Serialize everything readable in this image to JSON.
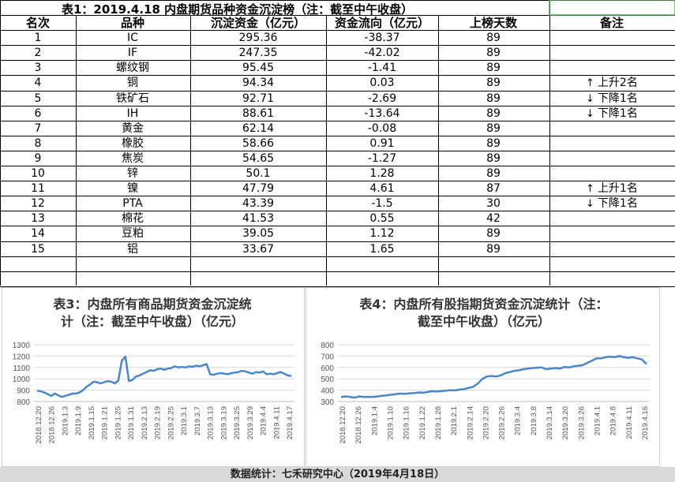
{
  "table": {
    "title": "表1：2019.4.18 内盘期货品种资金沉淀榜（注：截至中午收盘）",
    "headers": [
      "名次",
      "品种",
      "沉淀资金（亿元）",
      "资金流向（亿元）",
      "上榜天数",
      "备注"
    ],
    "rows": [
      {
        "rank": "1",
        "name": "IC",
        "capital": "295.36",
        "flow": "-38.37",
        "days": "89",
        "note": ""
      },
      {
        "rank": "2",
        "name": "IF",
        "capital": "247.35",
        "flow": "-42.02",
        "days": "89",
        "note": ""
      },
      {
        "rank": "3",
        "name": "螺纹钢",
        "capital": "95.45",
        "flow": "-1.41",
        "days": "89",
        "note": ""
      },
      {
        "rank": "4",
        "name": "铜",
        "capital": "94.34",
        "flow": "0.03",
        "days": "89",
        "note": "上升2名",
        "dir": "up"
      },
      {
        "rank": "5",
        "name": "铁矿石",
        "capital": "92.71",
        "flow": "-2.69",
        "days": "89",
        "note": "下降1名",
        "dir": "down"
      },
      {
        "rank": "6",
        "name": "IH",
        "capital": "88.61",
        "flow": "-13.64",
        "days": "89",
        "note": "下降1名",
        "dir": "down"
      },
      {
        "rank": "7",
        "name": "黄金",
        "capital": "62.14",
        "flow": "-0.08",
        "days": "89",
        "note": ""
      },
      {
        "rank": "8",
        "name": "橡胶",
        "capital": "58.66",
        "flow": "0.91",
        "days": "89",
        "note": ""
      },
      {
        "rank": "9",
        "name": "焦炭",
        "capital": "54.65",
        "flow": "-1.27",
        "days": "89",
        "note": ""
      },
      {
        "rank": "10",
        "name": "锌",
        "capital": "50.1",
        "flow": "1.28",
        "days": "89",
        "note": ""
      },
      {
        "rank": "11",
        "name": "镍",
        "capital": "47.79",
        "flow": "4.61",
        "days": "87",
        "note": "上升1名",
        "dir": "up"
      },
      {
        "rank": "12",
        "name": "PTA",
        "capital": "43.39",
        "flow": "-1.5",
        "days": "30",
        "note": "下降1名",
        "dir": "down"
      },
      {
        "rank": "13",
        "name": "棉花",
        "capital": "41.53",
        "flow": "0.55",
        "days": "42",
        "note": ""
      },
      {
        "rank": "14",
        "name": "豆粕",
        "capital": "39.05",
        "flow": "1.12",
        "days": "89",
        "note": ""
      },
      {
        "rank": "15",
        "name": "铝",
        "capital": "33.67",
        "flow": "1.65",
        "days": "89",
        "note": ""
      }
    ]
  },
  "footer": "数据统计：七禾研究中心（2019年4月18日）",
  "colors": {
    "line": "#4a86c8",
    "grid": "#d9d9d9",
    "green_cell_border": "#5aa05a"
  },
  "chart_data": [
    {
      "type": "line",
      "title_line1": "表3：内盘所有商品期货资金沉淀统",
      "title_line2": "计（注：截至中午收盘）（亿元）",
      "ylim": [
        800,
        1300
      ],
      "yticks": [
        800,
        900,
        1000,
        1100,
        1200,
        1300
      ],
      "xticks": [
        "2018.12.20",
        "2018.12.26",
        "2019.1.3",
        "2019.1.9",
        "2019.1.15",
        "2019.1.21",
        "2019.1.25",
        "2019.1.31",
        "2019.2.13",
        "2019.2.19",
        "2019.2.25",
        "2019.3.1",
        "2019.3.7",
        "2019.3.13",
        "2019.3.19",
        "2019.3.25",
        "2019.3.29",
        "2019.4.4",
        "2019.4.11",
        "2019.4.17"
      ],
      "values": [
        895,
        890,
        880,
        865,
        850,
        870,
        855,
        840,
        850,
        860,
        870,
        870,
        880,
        900,
        930,
        950,
        975,
        970,
        960,
        970,
        980,
        975,
        960,
        985,
        1160,
        1195,
        980,
        990,
        1020,
        1030,
        1045,
        1060,
        1075,
        1070,
        1085,
        1090,
        1080,
        1090,
        1095,
        1110,
        1100,
        1105,
        1100,
        1110,
        1105,
        1115,
        1110,
        1120,
        1130,
        1040,
        1035,
        1045,
        1050,
        1045,
        1040,
        1050,
        1055,
        1060,
        1070,
        1065,
        1055,
        1045,
        1060,
        1055,
        1065,
        1040,
        1045,
        1040,
        1050,
        1060,
        1045,
        1030,
        1025
      ]
    },
    {
      "type": "line",
      "title_line1": "表4：内盘所有股指期货资金沉淀统计（注：",
      "title_line2": "截至中午收盘）（亿元）",
      "ylim": [
        300,
        800
      ],
      "yticks": [
        300,
        400,
        500,
        600,
        700,
        800
      ],
      "xticks": [
        "2018.12.20",
        "2018.12.26",
        "2019.1.4",
        "2019.1.10",
        "2019.1.16",
        "2019.1.22",
        "2019.1.28",
        "2019.2.1",
        "2019.2.14",
        "2019.2.20",
        "2019.2.26",
        "2019.3.4",
        "2019.3.8",
        "2019.3.14",
        "2019.3.20",
        "2019.3.26",
        "2019.4.1",
        "2019.4.8",
        "2019.4.11",
        "2019.4.16"
      ],
      "values": [
        340,
        345,
        340,
        335,
        345,
        340,
        342,
        340,
        345,
        350,
        355,
        360,
        365,
        370,
        368,
        372,
        375,
        380,
        378,
        385,
        390,
        388,
        392,
        395,
        400,
        398,
        405,
        410,
        420,
        430,
        460,
        500,
        520,
        525,
        520,
        530,
        550,
        560,
        570,
        575,
        585,
        590,
        595,
        598,
        600,
        585,
        590,
        595,
        590,
        605,
        600,
        610,
        615,
        620,
        640,
        660,
        680,
        680,
        690,
        695,
        690,
        700,
        690,
        685,
        690,
        680,
        670,
        630
      ]
    }
  ]
}
